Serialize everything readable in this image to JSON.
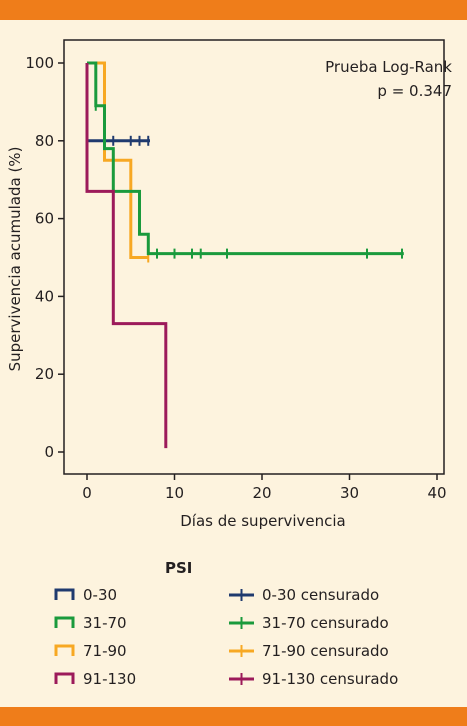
{
  "chart_data": {
    "type": "line",
    "subtype": "kaplan-meier step",
    "ylabel": "Supervivencia acumulada (%)",
    "xlabel": "Días de supervivencia",
    "xlim": [
      0,
      40
    ],
    "ylim": [
      0,
      100
    ],
    "x_ticks": [
      0,
      10,
      20,
      30,
      40
    ],
    "y_ticks": [
      0,
      20,
      40,
      60,
      80,
      100
    ],
    "annotation_line1": "Prueba Log-Rank",
    "annotation_line2": "p = 0.347",
    "legend_title": "PSI",
    "grid": false,
    "series": [
      {
        "name": "0-30",
        "color": "#1f3a6e",
        "steps": [
          [
            0,
            80
          ],
          [
            7.2,
            80
          ]
        ],
        "censored_name": "0-30 censurado",
        "censored": [
          [
            3,
            80
          ],
          [
            5,
            80
          ],
          [
            6,
            80
          ],
          [
            7,
            80
          ]
        ]
      },
      {
        "name": "31-70",
        "color": "#1a9a3c",
        "steps": [
          [
            0,
            100
          ],
          [
            1,
            100
          ],
          [
            1,
            89
          ],
          [
            2,
            89
          ],
          [
            2,
            78
          ],
          [
            3,
            78
          ],
          [
            3,
            67
          ],
          [
            6,
            67
          ],
          [
            6,
            56
          ],
          [
            7,
            56
          ],
          [
            7,
            51
          ],
          [
            36.2,
            51
          ]
        ],
        "censored_name": "31-70 censurado",
        "censored": [
          [
            1,
            89
          ],
          [
            8,
            51
          ],
          [
            10,
            51
          ],
          [
            12,
            51
          ],
          [
            13,
            51
          ],
          [
            16,
            51
          ],
          [
            32,
            51
          ],
          [
            36,
            51
          ]
        ]
      },
      {
        "name": "71-90",
        "color": "#f7a823",
        "steps": [
          [
            0,
            100
          ],
          [
            2,
            100
          ],
          [
            2,
            75
          ],
          [
            5,
            75
          ],
          [
            5,
            50
          ],
          [
            7,
            50
          ]
        ],
        "censored_name": "71-90 censurado",
        "censored": [
          [
            7,
            50
          ]
        ]
      },
      {
        "name": "91-130",
        "color": "#9c1a5a",
        "steps": [
          [
            0,
            100
          ],
          [
            0,
            67
          ],
          [
            3,
            67
          ],
          [
            3,
            33
          ],
          [
            9,
            33
          ],
          [
            9,
            1
          ]
        ],
        "censored_name": "91-130 censurado",
        "censored": []
      }
    ]
  },
  "colors": {
    "background": "#fdf3de",
    "accent_bar": "#ef7d1a",
    "axis": "#231f20"
  }
}
